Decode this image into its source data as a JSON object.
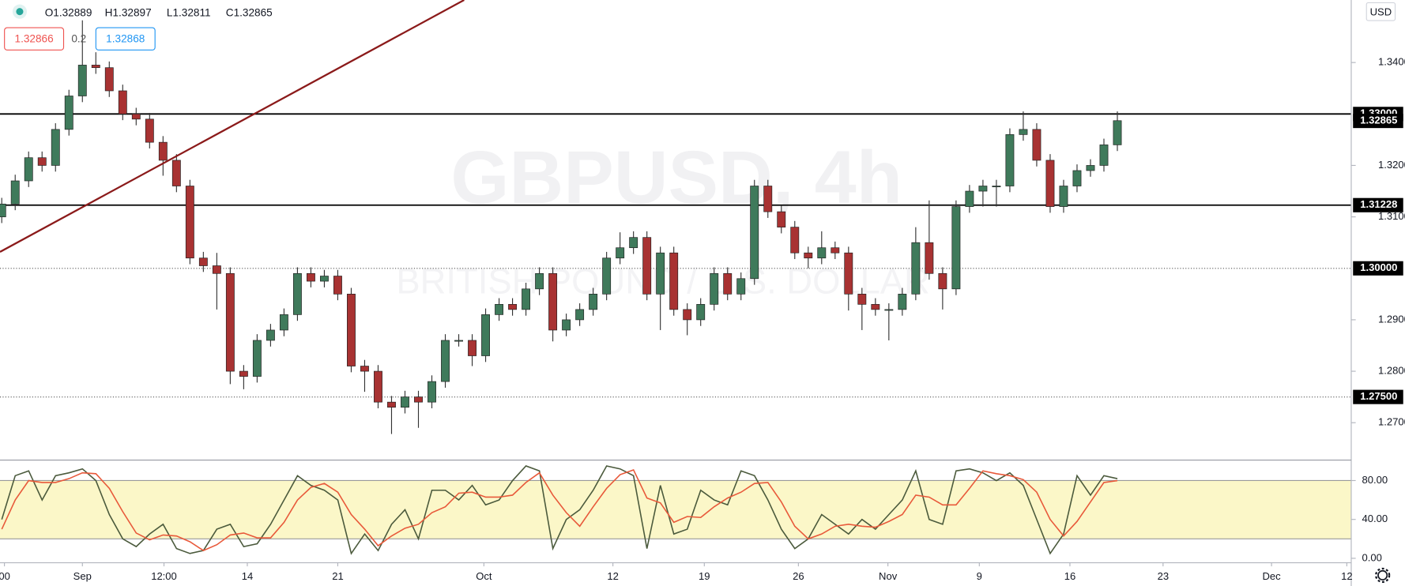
{
  "chart_data": {
    "type": "candlestick",
    "symbol_watermark": "GBPUSD, 4h",
    "description_watermark": "BRITISH POUND / U.S. DOLLAR",
    "legend": [
      "O1.32889",
      "H1.32897",
      "L1.32811",
      "C1.32865"
    ],
    "bid": "1.32866",
    "spread": "0.2",
    "ask": "1.32868",
    "currency": "USD",
    "up_color": "#3f7a5b",
    "down_color": "#a83232",
    "x": [
      -6,
      -5,
      -4,
      -3,
      -2,
      -1,
      0,
      1,
      2,
      3,
      4,
      5,
      6,
      7,
      8,
      9,
      10,
      11,
      12,
      13,
      14,
      15,
      16,
      17,
      18,
      19,
      20,
      21,
      22,
      23,
      24,
      25,
      26,
      27,
      28,
      29,
      30,
      31,
      32,
      33,
      34,
      35,
      36,
      37,
      38,
      39,
      40,
      41,
      42,
      43,
      44,
      45,
      46,
      47,
      48,
      49,
      50,
      51,
      52,
      53,
      54,
      55,
      56,
      57,
      58,
      59,
      60,
      61,
      62,
      63,
      64,
      65,
      66,
      67,
      68,
      69,
      70,
      71,
      72,
      73,
      74,
      75,
      76,
      77
    ],
    "open": [
      1.31,
      1.3125,
      1.317,
      1.3215,
      1.32,
      1.327,
      1.3335,
      1.3395,
      1.339,
      1.3345,
      1.33,
      1.329,
      1.3245,
      1.321,
      1.316,
      1.302,
      1.3005,
      1.299,
      1.28,
      1.279,
      1.286,
      1.288,
      1.291,
      1.299,
      1.2975,
      1.2985,
      1.295,
      1.281,
      1.28,
      1.274,
      1.273,
      1.275,
      1.274,
      1.278,
      1.286,
      1.286,
      1.283,
      1.291,
      1.293,
      1.292,
      1.296,
      1.299,
      1.288,
      1.29,
      1.292,
      1.295,
      1.302,
      1.304,
      1.306,
      1.295,
      1.303,
      1.292,
      1.29,
      1.293,
      1.299,
      1.295,
      1.298,
      1.316,
      1.311,
      1.308,
      1.303,
      1.302,
      1.304,
      1.303,
      1.295,
      1.293,
      1.292,
      1.292,
      1.295,
      1.305,
      1.299,
      1.296,
      1.312,
      1.315,
      1.316,
      1.316,
      1.326,
      1.327,
      1.321,
      1.312,
      1.316,
      1.319,
      1.32,
      1.324
    ],
    "high": [
      1.3137,
      1.3182,
      1.3227,
      1.3227,
      1.3282,
      1.3347,
      1.3482,
      1.342,
      1.3402,
      1.3357,
      1.3312,
      1.3302,
      1.3257,
      1.3222,
      1.3172,
      1.3032,
      1.303,
      1.3002,
      1.2812,
      1.2872,
      1.2892,
      1.2922,
      1.3002,
      1.3002,
      1.2997,
      1.2997,
      1.2962,
      1.2822,
      1.2812,
      1.2752,
      1.2762,
      1.2762,
      1.2792,
      1.2872,
      1.2872,
      1.2872,
      1.2922,
      1.2942,
      1.2942,
      1.2972,
      1.3002,
      1.3002,
      1.2912,
      1.2932,
      1.2962,
      1.3032,
      1.307,
      1.3072,
      1.3072,
      1.3042,
      1.3042,
      1.2932,
      1.2942,
      1.3002,
      1.3002,
      1.2992,
      1.3172,
      1.3172,
      1.3122,
      1.3092,
      1.3042,
      1.3072,
      1.3052,
      1.3042,
      1.2962,
      1.2942,
      1.2932,
      1.2962,
      1.308,
      1.3132,
      1.3002,
      1.3132,
      1.3162,
      1.3172,
      1.3172,
      1.3272,
      1.3305,
      1.3282,
      1.3222,
      1.3172,
      1.3202,
      1.3212,
      1.3252,
      1.3305
    ],
    "low": [
      1.3088,
      1.3113,
      1.3158,
      1.3188,
      1.3188,
      1.3258,
      1.3323,
      1.3378,
      1.3333,
      1.3288,
      1.3278,
      1.3233,
      1.318,
      1.3148,
      1.3008,
      1.2993,
      1.292,
      1.2775,
      1.2765,
      1.2778,
      1.2848,
      1.2868,
      1.2898,
      1.2963,
      1.2963,
      1.2938,
      1.2798,
      1.276,
      1.2728,
      1.2678,
      1.2718,
      1.269,
      1.2728,
      1.2768,
      1.2848,
      1.281,
      1.2818,
      1.2898,
      1.2908,
      1.2908,
      1.2948,
      1.2858,
      1.2868,
      1.2888,
      1.2908,
      1.2938,
      1.3008,
      1.3028,
      1.2938,
      1.288,
      1.2908,
      1.287,
      1.2888,
      1.2918,
      1.2938,
      1.2938,
      1.2968,
      1.3098,
      1.3068,
      1.3018,
      1.3,
      1.3008,
      1.3018,
      1.2918,
      1.288,
      1.2908,
      1.286,
      1.2908,
      1.2938,
      1.2978,
      1.292,
      1.2948,
      1.3108,
      1.312,
      1.312,
      1.3148,
      1.3248,
      1.3198,
      1.3108,
      1.3108,
      1.3148,
      1.3178,
      1.3188,
      1.3228
    ],
    "close": [
      1.3125,
      1.317,
      1.3215,
      1.32,
      1.327,
      1.3335,
      1.3395,
      1.339,
      1.3345,
      1.33,
      1.329,
      1.3245,
      1.321,
      1.316,
      1.302,
      1.3005,
      1.299,
      1.28,
      1.279,
      1.286,
      1.288,
      1.291,
      1.299,
      1.2975,
      1.2985,
      1.295,
      1.281,
      1.28,
      1.274,
      1.273,
      1.275,
      1.274,
      1.278,
      1.286,
      1.286,
      1.283,
      1.291,
      1.293,
      1.292,
      1.296,
      1.299,
      1.288,
      1.29,
      1.292,
      1.295,
      1.302,
      1.304,
      1.306,
      1.295,
      1.303,
      1.292,
      1.29,
      1.293,
      1.299,
      1.295,
      1.298,
      1.316,
      1.311,
      1.308,
      1.303,
      1.302,
      1.304,
      1.303,
      1.295,
      1.293,
      1.292,
      1.292,
      1.295,
      1.305,
      1.299,
      1.296,
      1.312,
      1.315,
      1.316,
      1.316,
      1.326,
      1.327,
      1.321,
      1.312,
      1.316,
      1.319,
      1.32,
      1.324,
      1.3287
    ],
    "xlim": [
      -6.13,
      94.4
    ],
    "xticks": [
      {
        "value": -5.8,
        "label": "00"
      },
      {
        "value": 0,
        "label": "Sep"
      },
      {
        "value": 6.07,
        "label": "12:00"
      },
      {
        "value": 12.27,
        "label": "14"
      },
      {
        "value": 19,
        "label": "21"
      },
      {
        "value": 29.87,
        "label": "Oct"
      },
      {
        "value": 39.47,
        "label": "12"
      },
      {
        "value": 46.27,
        "label": "19"
      },
      {
        "value": 53.27,
        "label": "26"
      },
      {
        "value": 59.93,
        "label": "Nov"
      },
      {
        "value": 66.73,
        "label": "9"
      },
      {
        "value": 73.47,
        "label": "16"
      },
      {
        "value": 80.4,
        "label": "23"
      },
      {
        "value": 88.47,
        "label": "Dec"
      },
      {
        "value": 94.07,
        "label": "12"
      }
    ],
    "ylim": [
      1.26274,
      1.35215
    ],
    "yticks": [
      {
        "value": 1.27,
        "label": "1.27000"
      },
      {
        "value": 1.28,
        "label": "1.28000"
      },
      {
        "value": 1.29,
        "label": "1.29000"
      },
      {
        "value": 1.31,
        "label": "1.31000"
      },
      {
        "value": 1.32,
        "label": "1.32000"
      },
      {
        "value": 1.34,
        "label": "1.34000"
      }
    ],
    "levels": [
      {
        "value": 1.33,
        "label": "1.33000",
        "style": "solid"
      },
      {
        "value": 1.31228,
        "label": "1.31228",
        "style": "solid"
      },
      {
        "value": 1.3,
        "label": "1.30000",
        "style": "dotted"
      },
      {
        "value": 1.275,
        "label": "1.27500",
        "style": "dotted"
      }
    ],
    "last_price": {
      "value": 1.32865,
      "label": "1.32865"
    },
    "indicator": {
      "type": "line",
      "ylim": [
        -4.6,
        101.1
      ],
      "yticks": [
        {
          "value": 0,
          "label": "0.00"
        },
        {
          "value": 40,
          "label": "40.00"
        },
        {
          "value": 80,
          "label": "80.00"
        }
      ],
      "band": [
        20,
        80
      ],
      "band_color": "#fbf7c8",
      "series": [
        {
          "color": "#4b5a3c",
          "values": [
            40,
            85,
            90,
            60,
            85,
            88,
            92,
            80,
            45,
            20,
            12,
            25,
            35,
            10,
            5,
            8,
            30,
            35,
            12,
            15,
            35,
            60,
            85,
            75,
            70,
            60,
            5,
            25,
            8,
            35,
            50,
            20,
            70,
            70,
            60,
            75,
            55,
            60,
            80,
            95,
            90,
            10,
            40,
            50,
            70,
            95,
            92,
            85,
            10,
            75,
            25,
            30,
            70,
            60,
            55,
            90,
            85,
            60,
            30,
            10,
            20,
            45,
            35,
            25,
            40,
            30,
            45,
            60,
            90,
            40,
            35,
            90,
            92,
            88,
            80,
            88,
            75,
            40,
            5,
            25,
            85,
            65,
            85,
            82
          ]
        },
        {
          "color": "#e8593a",
          "values": [
            30,
            60,
            80,
            78,
            78,
            82,
            88,
            87,
            72,
            48,
            26,
            19,
            24,
            23,
            17,
            8,
            14,
            24,
            26,
            21,
            21,
            37,
            60,
            73,
            77,
            68,
            45,
            30,
            13,
            23,
            31,
            35,
            47,
            53,
            67,
            68,
            63,
            63,
            65,
            78,
            88,
            65,
            47,
            33,
            53,
            72,
            86,
            91,
            62,
            57,
            37,
            43,
            42,
            53,
            62,
            68,
            77,
            78,
            58,
            33,
            20,
            25,
            33,
            35,
            33,
            32,
            38,
            45,
            65,
            63,
            55,
            55,
            72,
            90,
            87,
            85,
            81,
            68,
            40,
            23,
            38,
            58,
            78,
            80
          ]
        }
      ]
    }
  }
}
